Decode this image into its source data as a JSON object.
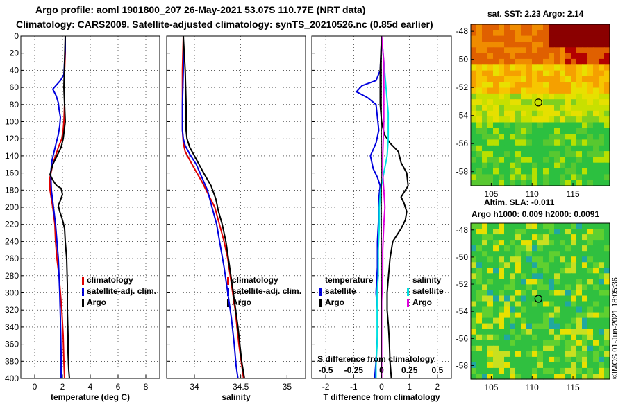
{
  "header": {
    "line1": "Argo profile: aoml 1901800_207 26-May-2021 53.07S 110.77E (NRT data)",
    "line2": "Climatology: CARS2009. Satellite-adjusted climatology: synTS_20210526.nc (0.85d earlier)"
  },
  "colors": {
    "climatology": "#e00000",
    "satellite": "#0000dd",
    "argo": "#000000",
    "sat_salinity": "#00e0e0",
    "argo_salinity": "#dd00dd"
  },
  "chart_data": [
    {
      "type": "line",
      "name": "temperature",
      "xlabel": "temperature (deg C)",
      "ylabel": "depth",
      "xlim": [
        -1,
        9
      ],
      "ylim": [
        400,
        0
      ],
      "xticks": [
        "0",
        "2",
        "4",
        "6",
        "8"
      ],
      "yticks": [
        "0",
        "20",
        "40",
        "60",
        "80",
        "100",
        "120",
        "140",
        "160",
        "180",
        "200",
        "220",
        "240",
        "260",
        "280",
        "300",
        "320",
        "340",
        "360",
        "380",
        "400"
      ],
      "legend": [
        "climatology",
        "satellite-adj. clim.",
        "Argo"
      ],
      "series": [
        {
          "name": "climatology",
          "color": "#e00000",
          "x": [
            2.2,
            2.2,
            2.15,
            2.15,
            2.15,
            2.1,
            2.05,
            1.95,
            1.7,
            1.3,
            1.1,
            1.1,
            1.3,
            1.45,
            1.5,
            1.6,
            1.75,
            1.85,
            1.95,
            2.05,
            2.1,
            2.15
          ],
          "depth": [
            0,
            20,
            40,
            60,
            80,
            100,
            110,
            120,
            130,
            150,
            165,
            180,
            200,
            220,
            240,
            260,
            280,
            300,
            320,
            350,
            380,
            400
          ]
        },
        {
          "name": "satellite-adj. clim.",
          "color": "#0000dd",
          "x": [
            2.2,
            2.2,
            2.15,
            2.1,
            1.85,
            1.3,
            1.55,
            1.7,
            1.75,
            1.85,
            1.8,
            1.7,
            1.5,
            1.25,
            1.15,
            1.2,
            1.35,
            1.5,
            1.6,
            1.7,
            1.75,
            1.8,
            1.85,
            1.9,
            1.9
          ],
          "depth": [
            0,
            15,
            30,
            45,
            52,
            62,
            70,
            78,
            85,
            95,
            105,
            115,
            128,
            145,
            160,
            180,
            200,
            220,
            240,
            260,
            280,
            300,
            330,
            370,
            400
          ]
        },
        {
          "name": "Argo",
          "color": "#000000",
          "x": [
            2.2,
            2.15,
            2.1,
            2.2,
            2.05,
            1.9,
            1.6,
            1.3,
            1.1,
            1.3,
            1.45,
            1.6,
            1.9,
            2.0,
            1.85,
            1.7,
            1.8,
            1.95,
            2.05,
            2.15,
            2.2,
            2.3,
            2.35,
            2.35,
            2.4,
            2.4,
            2.45,
            2.5
          ],
          "depth": [
            0,
            30,
            60,
            100,
            120,
            130,
            140,
            150,
            162,
            168,
            172,
            175,
            178,
            185,
            192,
            198,
            205,
            212,
            218,
            225,
            240,
            260,
            290,
            320,
            350,
            370,
            390,
            400
          ]
        }
      ]
    },
    {
      "type": "line",
      "name": "salinity",
      "xlabel": "salinity",
      "ylabel": "depth",
      "xlim": [
        33.7,
        35.2
      ],
      "ylim": [
        400,
        0
      ],
      "xticks": [
        "34",
        "34.5",
        "35"
      ],
      "legend": [
        "climatology",
        "satellite-adj. clim.",
        "Argo"
      ],
      "series": [
        {
          "name": "climatology",
          "color": "#e00000",
          "x": [
            33.88,
            33.87,
            33.87,
            33.87,
            33.88,
            33.9,
            33.95,
            34.0,
            34.08,
            34.15,
            34.22,
            34.27,
            34.32,
            34.36,
            34.4,
            34.44,
            34.48,
            34.53
          ],
          "depth": [
            0,
            40,
            80,
            110,
            125,
            135,
            145,
            155,
            170,
            185,
            200,
            220,
            240,
            260,
            290,
            320,
            360,
            400
          ]
        },
        {
          "name": "satellite-adj. clim.",
          "color": "#0000dd",
          "x": [
            33.88,
            33.88,
            33.87,
            33.87,
            33.88,
            33.9,
            33.95,
            34.02,
            34.08,
            34.14,
            34.19,
            34.24,
            34.28,
            34.32,
            34.36,
            34.4,
            34.43,
            34.45,
            34.47
          ],
          "depth": [
            0,
            40,
            80,
            110,
            120,
            128,
            138,
            150,
            165,
            180,
            200,
            220,
            245,
            270,
            300,
            330,
            360,
            385,
            400
          ]
        },
        {
          "name": "Argo",
          "color": "#000000",
          "x": [
            33.88,
            33.9,
            33.91,
            33.91,
            33.92,
            33.95,
            34.0,
            34.05,
            34.1,
            34.18,
            34.23,
            34.26,
            34.3,
            34.34,
            34.38,
            34.42,
            34.47,
            34.51,
            34.54
          ],
          "depth": [
            0,
            40,
            80,
            110,
            120,
            130,
            140,
            150,
            160,
            175,
            190,
            205,
            220,
            240,
            270,
            300,
            340,
            380,
            400
          ]
        }
      ]
    },
    {
      "type": "line",
      "name": "difference",
      "xlabel": "T difference from climatology",
      "xlabel_top": "S difference from climatology",
      "ylabel": "depth",
      "xlim": [
        -2.5,
        2.5
      ],
      "ylim": [
        400,
        0
      ],
      "xticks": [
        "-2",
        "-1",
        "0",
        "1",
        "2"
      ],
      "xticks_top": [
        "-0.5",
        "-0.25",
        "0",
        "0.25",
        "0.5"
      ],
      "legend_temperature": [
        "temperature",
        "satellite",
        "Argo"
      ],
      "legend_salinity": [
        "salinity",
        "satellite",
        "Argo"
      ],
      "series": [
        {
          "name": "temperature satellite",
          "color": "#0000dd",
          "x": [
            0.0,
            -0.02,
            -0.05,
            -0.2,
            -0.7,
            -0.9,
            -0.5,
            -0.2,
            -0.15,
            -0.1,
            -0.2,
            -0.4,
            -0.3,
            -0.15,
            -0.05,
            -0.1,
            -0.1,
            -0.15,
            -0.15,
            -0.2,
            -0.15,
            -0.15,
            -0.2,
            -0.25
          ],
          "depth": [
            0,
            20,
            40,
            52,
            58,
            65,
            72,
            80,
            95,
            110,
            125,
            140,
            155,
            165,
            175,
            190,
            210,
            240,
            270,
            300,
            320,
            350,
            380,
            400
          ]
        },
        {
          "name": "temperature Argo",
          "color": "#000000",
          "x": [
            0.0,
            -0.05,
            -0.05,
            0.0,
            0.1,
            0.3,
            0.6,
            0.7,
            0.9,
            0.95,
            0.7,
            0.8,
            0.9,
            0.85,
            0.7,
            0.4,
            0.3,
            0.25,
            0.2,
            0.2,
            0.25,
            0.28,
            0.3,
            0.35
          ],
          "depth": [
            0,
            40,
            80,
            100,
            115,
            125,
            135,
            148,
            160,
            175,
            188,
            195,
            205,
            215,
            225,
            240,
            260,
            280,
            300,
            320,
            340,
            360,
            380,
            400
          ]
        },
        {
          "name": "salinity satellite",
          "color": "#00e0e0",
          "x": [
            0.0,
            0.02,
            0.04,
            0.06,
            0.06,
            0.05,
            0.02,
            -0.01,
            -0.02,
            -0.02,
            -0.03,
            -0.03,
            -0.04,
            -0.04,
            -0.04,
            -0.05,
            -0.05
          ],
          "depth": [
            0,
            30,
            60,
            90,
            120,
            140,
            160,
            180,
            200,
            220,
            250,
            280,
            300,
            330,
            360,
            385,
            400
          ]
        },
        {
          "name": "salinity Argo",
          "color": "#dd00dd",
          "x": [
            0.0,
            0.02,
            0.02,
            0.02,
            0.01,
            0.01,
            0.02,
            0.03,
            0.02,
            0.01,
            0.01,
            0.0,
            0.0,
            0.0,
            0.0
          ],
          "depth": [
            0,
            30,
            60,
            100,
            140,
            160,
            180,
            200,
            220,
            250,
            280,
            310,
            350,
            380,
            400
          ]
        }
      ]
    },
    {
      "type": "heatmap",
      "name": "sst_map",
      "title": "sat. SST: 2.23 Argo: 2.14",
      "xticks": [
        "105",
        "110",
        "115"
      ],
      "yticks": [
        "-48",
        "-50",
        "-52",
        "-54",
        "-56",
        "-58"
      ],
      "xlim": [
        102.5,
        119.5
      ],
      "ylim": [
        -59,
        -47.5
      ],
      "marker": {
        "lon": 110.77,
        "lat": -53.07
      }
    },
    {
      "type": "heatmap",
      "name": "sla_map",
      "title": "Altim. SLA: -0.011",
      "subtitle": "Argo h1000: 0.009 h2000: 0.0091",
      "xticks": [
        "105",
        "110",
        "115"
      ],
      "yticks": [
        "-48",
        "-50",
        "-52",
        "-54",
        "-56",
        "-58"
      ],
      "xlim": [
        102.5,
        119.5
      ],
      "ylim": [
        -59,
        -47.5
      ],
      "marker": {
        "lon": 110.77,
        "lat": -53.07
      }
    }
  ],
  "credit": "©IMOS 01-Jun-2021 18:05:36"
}
